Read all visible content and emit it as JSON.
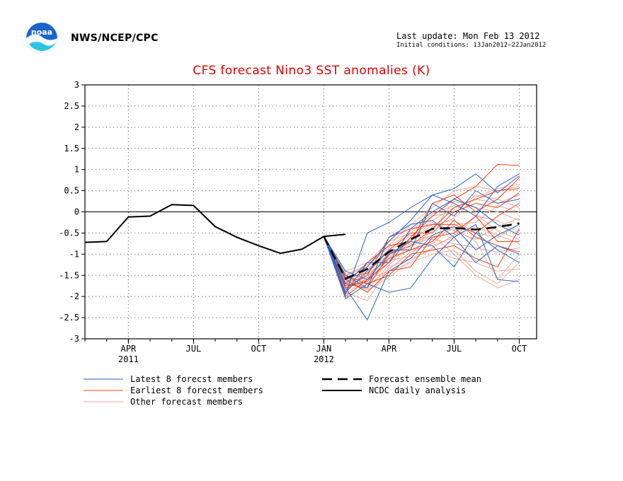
{
  "header": {
    "org": "NWS/NCEP/CPC",
    "last_update": "Last update: Mon Feb 13 2012",
    "initial_conditions": "Initial conditions: 13Jan2012–22Jan2012",
    "logo_text": "noaa"
  },
  "colors": {
    "latest": "#2a63c6",
    "earliest": "#e8401a",
    "other": "#f0a898",
    "title": "#e00000"
  },
  "chart_data": {
    "type": "line",
    "title": "CFS forecast Nino3 SST anomalies (K)",
    "xlabel": "",
    "ylabel": "",
    "x_unit": "months since Jan 2011",
    "xlim": [
      1,
      21.8
    ],
    "ylim": [
      -3,
      3
    ],
    "yticks": [
      3,
      2.5,
      2,
      1.5,
      1,
      0.5,
      0,
      -0.5,
      -1,
      -1.5,
      -2,
      -2.5,
      -3
    ],
    "xticks": [
      {
        "x": 3,
        "label": "APR",
        "sub": "2011"
      },
      {
        "x": 6,
        "label": "JUL",
        "sub": ""
      },
      {
        "x": 9,
        "label": "OCT",
        "sub": ""
      },
      {
        "x": 12,
        "label": "JAN",
        "sub": "2012"
      },
      {
        "x": 15,
        "label": "APR",
        "sub": ""
      },
      {
        "x": 18,
        "label": "JUL",
        "sub": ""
      },
      {
        "x": 21,
        "label": "OCT",
        "sub": ""
      }
    ],
    "grid": true,
    "legend": [
      {
        "label": "Latest 8 forecst members",
        "style": "latest"
      },
      {
        "label": "Earliest 8 forecst members",
        "style": "earliest"
      },
      {
        "label": "Other forecast members",
        "style": "other"
      },
      {
        "label": "Forecast ensemble mean",
        "style": "mean"
      },
      {
        "label": "NCDC daily analysis",
        "style": "obs"
      }
    ],
    "observed": {
      "name": "NCDC daily analysis",
      "x": [
        1,
        2,
        3,
        4,
        5,
        6,
        7,
        8,
        9,
        10,
        11,
        12,
        13
      ],
      "y": [
        -0.72,
        -0.7,
        -0.12,
        -0.1,
        0.17,
        0.15,
        -0.35,
        -0.6,
        -0.8,
        -0.98,
        -0.88,
        -0.58,
        -0.53
      ]
    },
    "ensemble_mean": {
      "name": "Forecast ensemble mean",
      "x": [
        12,
        13,
        14,
        15,
        16,
        17,
        18,
        19,
        20,
        21
      ],
      "y": [
        -0.58,
        -1.58,
        -1.35,
        -0.95,
        -0.65,
        -0.4,
        -0.38,
        -0.42,
        -0.36,
        -0.27
      ]
    },
    "members_x": [
      12,
      13,
      14,
      15,
      16,
      17,
      18,
      19,
      20,
      21
    ],
    "members_latest": [
      [
        -0.58,
        -1.95,
        -0.5,
        -0.25,
        0.1,
        0.4,
        0.55,
        0.9,
        0.45,
        0.85
      ],
      [
        -0.58,
        -2.05,
        -1.7,
        -1.9,
        -1.8,
        -1.1,
        -0.6,
        -0.3,
        -1.6,
        -1.65
      ],
      [
        -0.58,
        -1.8,
        -2.55,
        -1.4,
        -1.1,
        -0.55,
        -0.35,
        -0.9,
        -0.55,
        -0.3
      ],
      [
        -0.58,
        -1.6,
        -1.3,
        -0.7,
        -0.2,
        0.4,
        0.2,
        -0.1,
        0.6,
        0.9
      ],
      [
        -0.58,
        -1.4,
        -1.6,
        -1.0,
        -0.7,
        -0.8,
        -1.3,
        -0.5,
        -0.9,
        -1.2
      ],
      [
        -0.58,
        -1.7,
        -1.2,
        -1.2,
        -0.4,
        0.0,
        0.3,
        0.1,
        -0.3,
        -0.55
      ],
      [
        -0.58,
        -1.5,
        -1.8,
        -0.6,
        -0.3,
        -0.2,
        -0.6,
        -1.2,
        -0.8,
        -1.0
      ],
      [
        -0.58,
        -1.9,
        -1.4,
        -0.9,
        -0.9,
        0.2,
        -0.1,
        0.5,
        0.2,
        0.3
      ]
    ],
    "members_earliest": [
      [
        -0.58,
        -2.0,
        -1.6,
        -1.2,
        -0.6,
        -0.1,
        0.3,
        0.6,
        1.12,
        1.1
      ],
      [
        -0.58,
        -1.7,
        -1.8,
        -1.0,
        -0.8,
        -0.4,
        0.1,
        0.3,
        0.5,
        0.55
      ],
      [
        -0.58,
        -1.6,
        -1.9,
        -1.4,
        -1.3,
        -0.6,
        -0.5,
        -0.1,
        -0.7,
        -0.7
      ],
      [
        -0.58,
        -1.8,
        -1.5,
        -0.6,
        -0.4,
        -0.3,
        -0.3,
        -0.5,
        -0.1,
        0.2
      ],
      [
        -0.58,
        -1.5,
        -1.7,
        -1.5,
        -1.0,
        -0.9,
        -0.8,
        -1.1,
        -1.3,
        -0.4
      ],
      [
        -0.58,
        -1.9,
        -1.2,
        -0.8,
        -0.7,
        0.2,
        0.4,
        0.0,
        0.3,
        0.8
      ],
      [
        -0.58,
        -1.75,
        -1.65,
        -1.1,
        -0.9,
        -0.7,
        -0.2,
        -0.6,
        -0.8,
        -0.95
      ],
      [
        -0.58,
        -1.55,
        -1.45,
        -0.9,
        -0.5,
        -0.5,
        0.0,
        0.2,
        0.1,
        0.45
      ]
    ],
    "members_other": [
      [
        -0.58,
        -1.7,
        -1.5,
        -1.1,
        -0.6,
        -0.2,
        0.1,
        0.3,
        0.2,
        0.4
      ],
      [
        -0.58,
        -1.5,
        -1.3,
        -0.8,
        -0.3,
        0.1,
        0.5,
        0.6,
        0.5,
        0.6
      ],
      [
        -0.58,
        -1.9,
        -2.1,
        -1.3,
        -1.1,
        -0.9,
        -1.1,
        -1.2,
        -1.4,
        -1.35
      ],
      [
        -0.58,
        -1.6,
        -1.7,
        -1.2,
        -0.8,
        -0.6,
        -0.4,
        -0.7,
        -1.6,
        -1.0
      ],
      [
        -0.58,
        -1.4,
        -1.2,
        -0.7,
        -0.5,
        -0.1,
        0.0,
        0.4,
        0.3,
        0.1
      ],
      [
        -0.58,
        -1.8,
        -1.6,
        -1.4,
        -1.2,
        -1.0,
        -0.9,
        -1.4,
        -1.7,
        -1.2
      ],
      [
        -0.58,
        -1.65,
        -1.55,
        -1.0,
        -0.7,
        -0.3,
        -0.2,
        -0.5,
        -0.6,
        -0.3
      ],
      [
        -0.58,
        -1.75,
        -1.35,
        -0.9,
        -0.9,
        -0.8,
        -0.6,
        -0.1,
        -0.2,
        -0.5
      ],
      [
        -0.58,
        -1.55,
        -1.85,
        -1.25,
        -0.85,
        -0.45,
        0.25,
        0.1,
        0.0,
        -0.2
      ],
      [
        -0.58,
        -1.45,
        -1.65,
        -0.95,
        -0.55,
        -0.65,
        -0.75,
        -0.85,
        -0.95,
        -0.85
      ],
      [
        -0.58,
        -1.85,
        -1.45,
        -1.15,
        -1.05,
        -0.35,
        -0.15,
        0.35,
        0.55,
        0.65
      ],
      [
        -0.58,
        -1.6,
        -1.4,
        -1.0,
        -0.75,
        -0.55,
        -1.0,
        -1.5,
        -1.8,
        -1.6
      ],
      [
        -0.58,
        -1.7,
        -1.75,
        -1.35,
        -0.95,
        -0.75,
        -0.3,
        -0.25,
        0.15,
        0.0
      ],
      [
        -0.58,
        -1.5,
        -1.25,
        -0.85,
        -0.45,
        -0.05,
        0.15,
        -0.05,
        -0.45,
        -0.65
      ],
      [
        -0.58,
        -1.95,
        -1.55,
        -1.05,
        -0.65,
        -0.25,
        -0.45,
        -0.65,
        -0.35,
        -0.15
      ],
      [
        -0.58,
        -1.65,
        -1.85,
        -1.55,
        -1.15,
        -0.85,
        -0.55,
        -0.35,
        -0.55,
        -0.75
      ]
    ]
  }
}
